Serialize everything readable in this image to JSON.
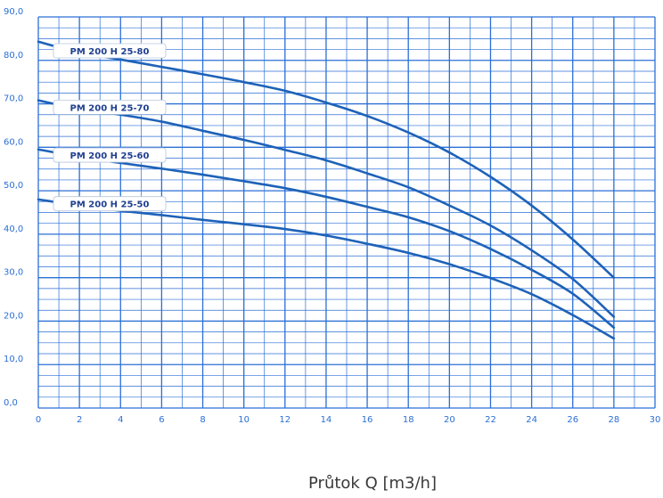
{
  "chart_data": {
    "type": "line",
    "xlabel": "Průtok Q [m3/h]",
    "ylabel": "",
    "xlim": [
      0,
      30
    ],
    "ylim": [
      0,
      90
    ],
    "x_ticks": [
      "0",
      "2",
      "4",
      "6",
      "8",
      "10",
      "12",
      "14",
      "16",
      "18",
      "20",
      "22",
      "24",
      "26",
      "28",
      "30"
    ],
    "y_ticks": [
      "0,0",
      "10,0",
      "20,0",
      "30,0",
      "40,0",
      "50,0",
      "60,0",
      "70,0",
      "80,0",
      "90,0"
    ],
    "grid": true,
    "colors": {
      "line": "#1e62b8",
      "grid": "#2a6fd6",
      "label_text": "#1f3f8f"
    },
    "series": [
      {
        "name": "PM 200 H 25-80",
        "x": [
          0,
          2,
          4,
          6,
          8,
          10,
          12,
          14,
          16,
          18,
          20,
          22,
          24,
          26,
          28
        ],
        "values": [
          84.3,
          81.8,
          80.2,
          78.5,
          76.8,
          75.0,
          73.0,
          70.3,
          67.2,
          63.4,
          58.8,
          53.2,
          46.6,
          38.8,
          30.0
        ]
      },
      {
        "name": "PM 200 H 25-70",
        "x": [
          0,
          2,
          4,
          6,
          8,
          10,
          12,
          14,
          16,
          18,
          20,
          22,
          24,
          26,
          28
        ],
        "values": [
          70.8,
          68.8,
          67.5,
          65.9,
          63.8,
          61.7,
          59.4,
          57.0,
          54.0,
          50.8,
          46.6,
          42.0,
          36.3,
          29.7,
          21.0
        ]
      },
      {
        "name": "PM 200 H 25-60",
        "x": [
          0,
          2,
          4,
          6,
          8,
          10,
          12,
          14,
          16,
          18,
          20,
          22,
          24,
          26,
          28
        ],
        "values": [
          59.5,
          57.8,
          56.4,
          55.1,
          53.7,
          52.2,
          50.6,
          48.6,
          46.3,
          43.9,
          40.7,
          36.6,
          31.8,
          26.3,
          18.5
        ]
      },
      {
        "name": "PM 200 H 25-50",
        "x": [
          0,
          2,
          4,
          6,
          8,
          10,
          12,
          14,
          16,
          18,
          20,
          22,
          24,
          26,
          28
        ],
        "values": [
          48.0,
          46.6,
          45.4,
          44.4,
          43.3,
          42.3,
          41.2,
          39.7,
          37.8,
          35.7,
          33.1,
          29.9,
          26.2,
          21.4,
          16.0
        ]
      }
    ]
  }
}
